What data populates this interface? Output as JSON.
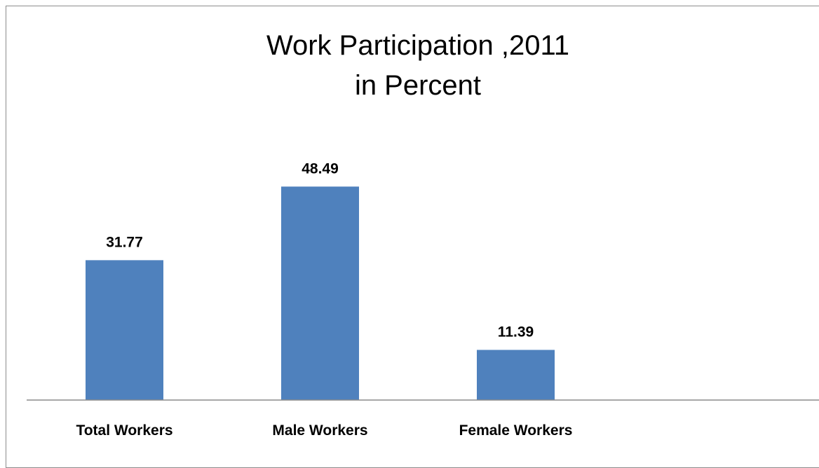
{
  "chart_data": {
    "type": "bar",
    "title_lines": [
      "Work Participation ,2011",
      "in Percent"
    ],
    "categories": [
      "Total Workers",
      "Male Workers",
      "Female Workers"
    ],
    "values": [
      31.77,
      48.49,
      11.39
    ],
    "value_labels": [
      "31.77",
      "48.49",
      "11.39"
    ],
    "ylim": [
      0,
      60
    ],
    "grid": false,
    "legend": "none",
    "bar_color": "#4F81BD",
    "axis_color": "#8C8C8C"
  }
}
